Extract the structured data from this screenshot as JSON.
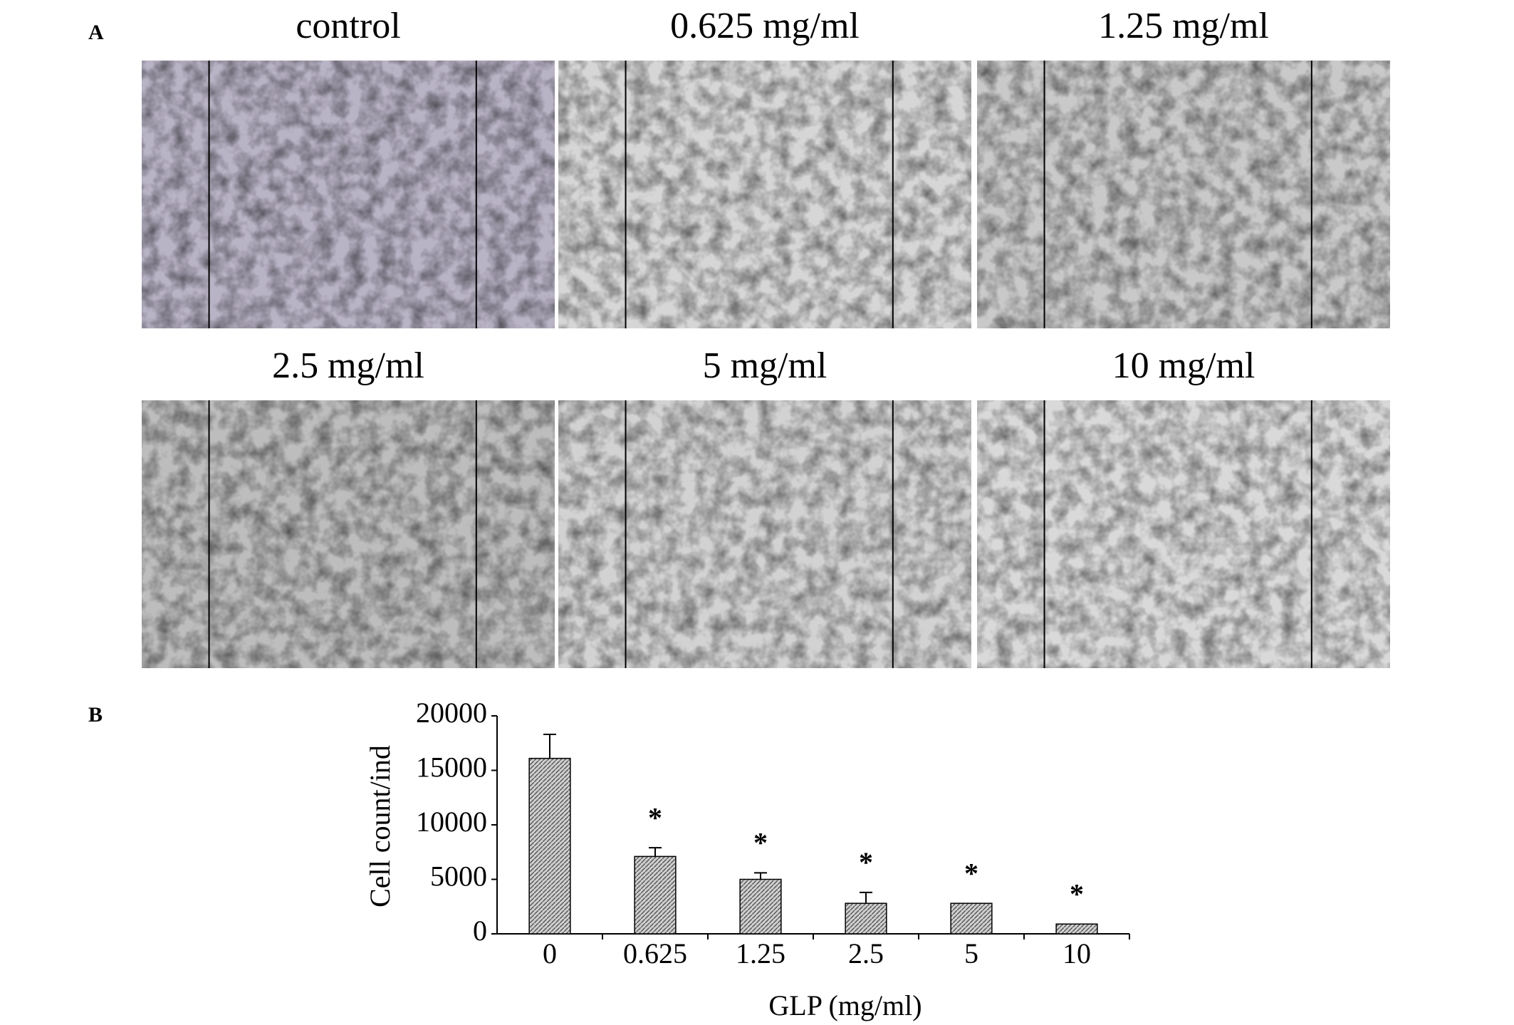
{
  "panel_labels": [
    "A",
    "B"
  ],
  "panel_a": {
    "image_titles": [
      "control",
      "0.625 mg/ml",
      "1.25 mg/ml",
      "2.5 mg/ml",
      "5 mg/ml",
      "10 mg/ml"
    ]
  },
  "chart_data": {
    "type": "bar",
    "x_label": "GLP (mg/ml)",
    "y_label": "Cell count/ind",
    "categories": [
      "0",
      "0.625",
      "1.25",
      "2.5",
      "5",
      "10"
    ],
    "values": [
      16100,
      7100,
      5000,
      2800,
      2800,
      900
    ],
    "errors": [
      2200,
      800,
      600,
      1000,
      null,
      null
    ],
    "annotations": [
      null,
      "*",
      "*",
      "*",
      "*",
      "*"
    ],
    "color": "#a6a6a6",
    "ylim": [
      0,
      20000
    ],
    "yticks": [
      0,
      5000,
      10000,
      15000,
      20000
    ]
  }
}
